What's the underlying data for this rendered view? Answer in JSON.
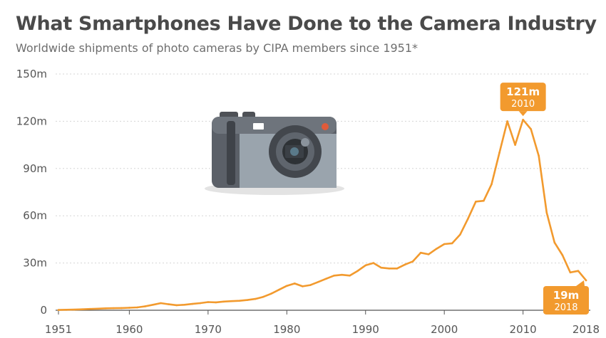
{
  "header": {
    "title": "What Smartphones Have Done to the Camera Industry",
    "subtitle": "Worldwide shipments of photo cameras by CIPA members since 1951*"
  },
  "colors": {
    "line": "#f29a2e",
    "callout": "#f29a2e",
    "grid": "#d5d5d5",
    "text": "#555555"
  },
  "icon": "camera-icon",
  "chart_data": {
    "type": "line",
    "title": "What Smartphones Have Done to the Camera Industry",
    "subtitle": "Worldwide shipments of photo cameras by CIPA members since 1951*",
    "xlabel": "",
    "ylabel": "",
    "xlim": [
      1951,
      2018
    ],
    "ylim": [
      0,
      150
    ],
    "grid": true,
    "y_ticks": [
      {
        "value": 0,
        "label": "0"
      },
      {
        "value": 30,
        "label": "30m"
      },
      {
        "value": 60,
        "label": "60m"
      },
      {
        "value": 90,
        "label": "90m"
      },
      {
        "value": 120,
        "label": "120m"
      },
      {
        "value": 150,
        "label": "150m"
      }
    ],
    "x_ticks": [
      {
        "value": 1951,
        "label": "1951"
      },
      {
        "value": 1960,
        "label": "1960"
      },
      {
        "value": 1970,
        "label": "1970"
      },
      {
        "value": 1980,
        "label": "1980"
      },
      {
        "value": 1990,
        "label": "1990"
      },
      {
        "value": 2000,
        "label": "2000"
      },
      {
        "value": 2010,
        "label": "2010"
      },
      {
        "value": 2018,
        "label": "2018"
      }
    ],
    "series": [
      {
        "x": [
          1951,
          1952,
          1953,
          1954,
          1955,
          1956,
          1957,
          1958,
          1959,
          1960,
          1961,
          1962,
          1963,
          1964,
          1965,
          1966,
          1967,
          1968,
          1969,
          1970,
          1971,
          1972,
          1973,
          1974,
          1975,
          1976,
          1977,
          1978,
          1979,
          1980,
          1981,
          1982,
          1983,
          1984,
          1985,
          1986,
          1987,
          1988,
          1989,
          1990,
          1991,
          1992,
          1993,
          1994,
          1995,
          1996,
          1997,
          1998,
          1999,
          2000,
          2001,
          2002,
          2003,
          2004,
          2005,
          2006,
          2007,
          2008,
          2009,
          2010,
          2011,
          2012,
          2013,
          2014,
          2015,
          2016,
          2017,
          2018
        ],
        "values": [
          0.2,
          0.3,
          0.4,
          0.6,
          0.8,
          1.0,
          1.2,
          1.3,
          1.4,
          1.6,
          1.8,
          2.5,
          3.5,
          4.5,
          3.8,
          3.2,
          3.5,
          4.0,
          4.5,
          5.2,
          5.0,
          5.5,
          5.8,
          6.0,
          6.5,
          7.2,
          8.5,
          10.5,
          13.0,
          15.5,
          17.0,
          15.2,
          16.0,
          18.0,
          20.0,
          22.0,
          22.5,
          22.0,
          25.0,
          28.5,
          30.0,
          27.0,
          26.5,
          26.5,
          29.0,
          31.0,
          36.5,
          35.5,
          39.0,
          42.0,
          42.5,
          48.0,
          58.0,
          69.0,
          69.5,
          80.0,
          100.0,
          120.0,
          105.0,
          121.0,
          115.0,
          98.0,
          62.0,
          43.0,
          35.0,
          24.0,
          25.0,
          19.0
        ]
      }
    ],
    "annotations": [
      {
        "x": 2010,
        "y": 121,
        "label_value": "121m",
        "label_year": "2010",
        "place": "above"
      },
      {
        "x": 2018,
        "y": 19,
        "label_value": "19m",
        "label_year": "2018",
        "place": "below-left"
      }
    ]
  }
}
